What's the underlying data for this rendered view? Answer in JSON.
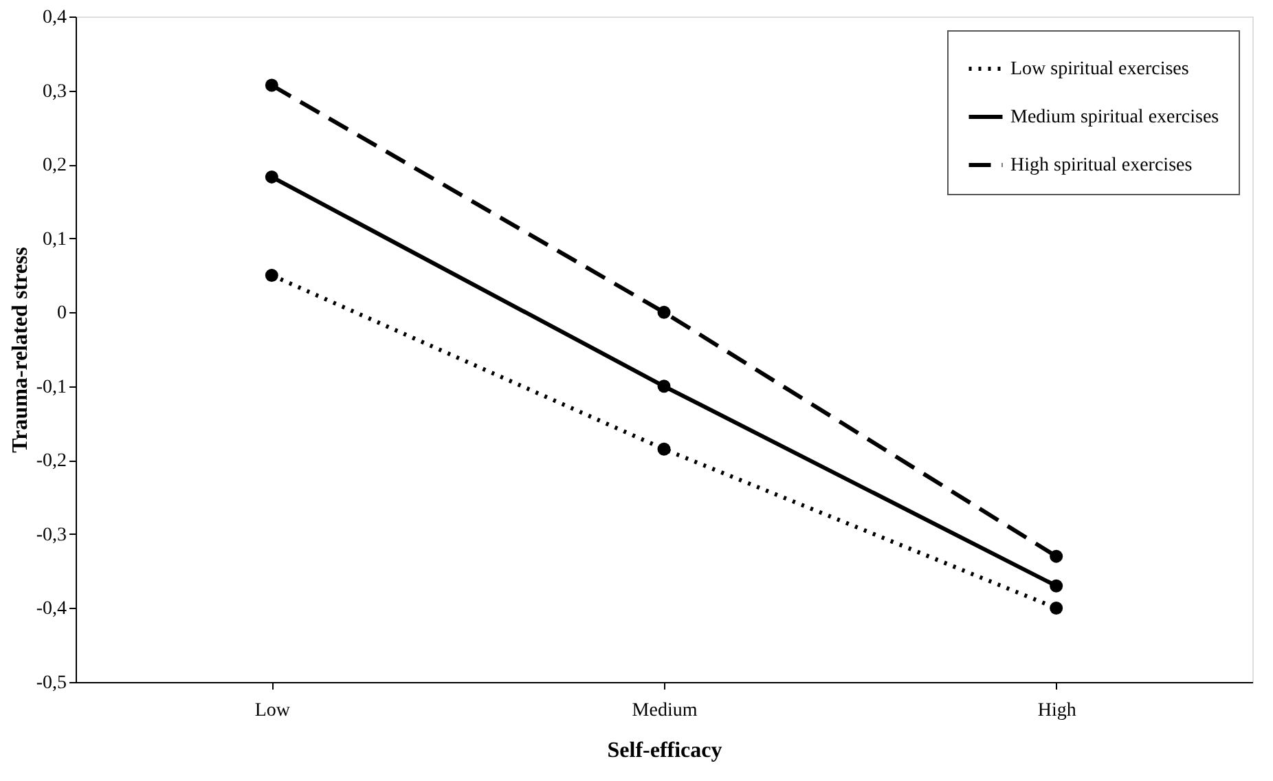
{
  "chart_data": {
    "type": "line",
    "xlabel": "Self-efficacy",
    "ylabel": "Trauma-related stress",
    "categories": [
      "Low",
      "Medium",
      "High"
    ],
    "series": [
      {
        "name": "Low spiritual exercises",
        "color": "#000000",
        "line_style": "dotted",
        "values": [
          0.05,
          -0.185,
          -0.4
        ]
      },
      {
        "name": "Medium spiritual exercises",
        "color": "#000000",
        "line_style": "solid",
        "values": [
          0.183,
          -0.1,
          -0.37
        ]
      },
      {
        "name": "High spiritual exercises",
        "color": "#000000",
        "line_style": "dashed",
        "values": [
          0.307,
          0.0,
          -0.33
        ]
      }
    ],
    "marker": "circle",
    "ylim": [
      -0.5,
      0.4
    ],
    "yticks": [
      {
        "value": -0.5,
        "label": "-0,5"
      },
      {
        "value": -0.4,
        "label": "-0,4"
      },
      {
        "value": -0.3,
        "label": "-0,3"
      },
      {
        "value": -0.2,
        "label": "-0,2"
      },
      {
        "value": -0.1,
        "label": "-0,1"
      },
      0,
      {
        "value": 0.1,
        "label": "0,1"
      },
      {
        "value": 0.2,
        "label": "0,2"
      },
      {
        "value": 0.3,
        "label": "0,3"
      },
      {
        "value": 0.4,
        "label": "0,4"
      }
    ],
    "grid": false,
    "legend": "top right"
  }
}
